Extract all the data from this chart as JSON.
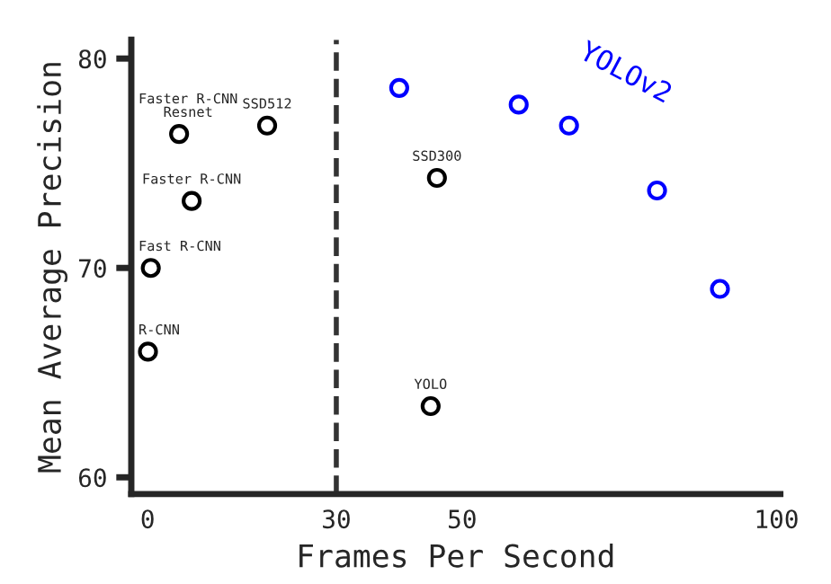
{
  "chart_data": {
    "type": "scatter",
    "xlabel": "Frames Per Second",
    "ylabel": "Mean Average Precision",
    "xlim": [
      -2.6,
      100.6
    ],
    "ylim": [
      59.2,
      80.9
    ],
    "xticks": [
      0,
      30,
      50,
      100
    ],
    "yticks": [
      60,
      70,
      80
    ],
    "grid": false,
    "legend": false,
    "marker": "circle",
    "series": [
      {
        "color": "#000000",
        "x": [
          0.05,
          0.5,
          7,
          5,
          19,
          46,
          45
        ],
        "values": [
          66.0,
          70.0,
          73.2,
          76.4,
          76.8,
          74.3,
          63.4
        ]
      },
      {
        "name": "YOLOv2",
        "color": "#0000ff",
        "x": [
          40,
          59,
          67,
          81,
          91
        ],
        "values": [
          78.6,
          77.8,
          76.8,
          73.7,
          69.0
        ]
      }
    ],
    "ref_lines": [
      {
        "axis": "x",
        "value": 30,
        "line_style": "dashed",
        "color": "#333333"
      }
    ],
    "annotations": [
      {
        "text": "R-CNN",
        "x": 0.05,
        "y": 66.0
      },
      {
        "text": "Fast R-CNN",
        "x": 0.5,
        "y": 70.0
      },
      {
        "text": "Faster R-CNN",
        "x": 7,
        "y": 73.2
      },
      {
        "text": "Faster R-CNN\nResnet",
        "x": 5,
        "y": 76.4
      },
      {
        "text": "SSD512",
        "x": 19,
        "y": 76.8
      },
      {
        "text": "SSD300",
        "x": 46,
        "y": 74.3
      },
      {
        "text": "YOLO",
        "x": 45,
        "y": 63.4
      }
    ]
  }
}
